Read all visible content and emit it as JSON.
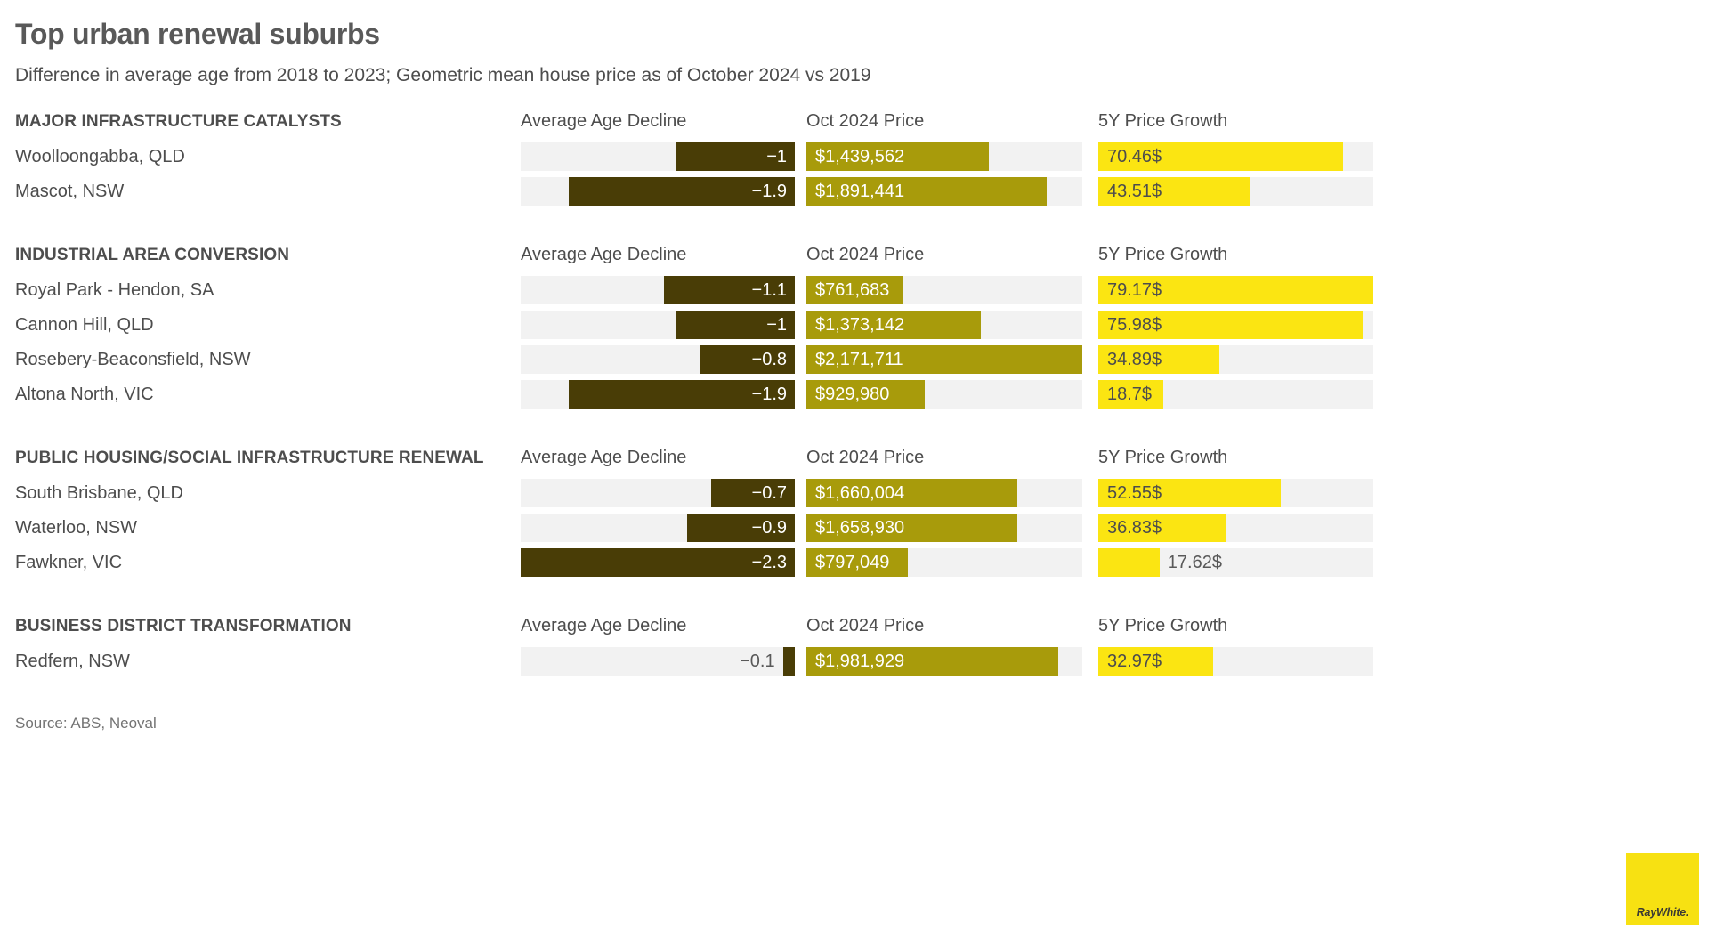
{
  "title": "Top urban renewal suburbs",
  "subtitle": "Difference in average age from 2018 to 2023; Geometric mean house price as of October 2024 vs 2019",
  "source_note": "Source: ABS, Neoval",
  "logo_text": "RayWhite.",
  "colors": {
    "age_bar": "#493d06",
    "price_bar": "#a89b0b",
    "growth_bar": "#fbe512",
    "track": "#f2f2f2",
    "logo_bg": "#f7e112"
  },
  "chart_data": {
    "type": "bar",
    "orientation": "horizontal",
    "title": "Top urban renewal suburbs",
    "subtitle": "Difference in average age from 2018 to 2023; Geometric mean house price as of October 2024 vs 2019",
    "legend_position": "none",
    "grid": false,
    "measures": [
      {
        "key": "age",
        "label": "Average Age Decline",
        "axis_min": 0,
        "axis_max": 2.3
      },
      {
        "key": "price",
        "label": "Oct 2024 Price",
        "axis_min": 0,
        "axis_max": 2171711
      },
      {
        "key": "growth",
        "label": "5Y Price Growth",
        "axis_min": 0,
        "axis_max": 79.17
      }
    ],
    "sections": [
      {
        "label": "MAJOR INFRASTRUCTURE CATALYSTS",
        "rows": [
          {
            "suburb": "Woolloongabba, QLD",
            "age": 1,
            "age_label": "−1",
            "price": 1439562,
            "price_label": "$1,439,562",
            "growth": 70.46,
            "growth_label": "70.46$"
          },
          {
            "suburb": "Mascot, NSW",
            "age": 1.9,
            "age_label": "−1.9",
            "price": 1891441,
            "price_label": "$1,891,441",
            "growth": 43.51,
            "growth_label": "43.51$"
          }
        ]
      },
      {
        "label": "INDUSTRIAL AREA CONVERSION",
        "rows": [
          {
            "suburb": "Royal Park - Hendon, SA",
            "age": 1.1,
            "age_label": "−1.1",
            "price": 761683,
            "price_label": "$761,683",
            "growth": 79.17,
            "growth_label": "79.17$"
          },
          {
            "suburb": "Cannon Hill, QLD",
            "age": 1,
            "age_label": "−1",
            "price": 1373142,
            "price_label": "$1,373,142",
            "growth": 75.98,
            "growth_label": "75.98$"
          },
          {
            "suburb": "Rosebery-Beaconsfield, NSW",
            "age": 0.8,
            "age_label": "−0.8",
            "price": 2171711,
            "price_label": "$2,171,711",
            "growth": 34.89,
            "growth_label": "34.89$"
          },
          {
            "suburb": "Altona North, VIC",
            "age": 1.9,
            "age_label": "−1.9",
            "price": 929980,
            "price_label": "$929,980",
            "growth": 18.7,
            "growth_label": "18.7$"
          }
        ]
      },
      {
        "label": "PUBLIC HOUSING/SOCIAL INFRASTRUCTURE RENEWAL",
        "rows": [
          {
            "suburb": "South Brisbane, QLD",
            "age": 0.7,
            "age_label": "−0.7",
            "price": 1660004,
            "price_label": "$1,660,004",
            "growth": 52.55,
            "growth_label": "52.55$"
          },
          {
            "suburb": "Waterloo, NSW",
            "age": 0.9,
            "age_label": "−0.9",
            "price": 1658930,
            "price_label": "$1,658,930",
            "growth": 36.83,
            "growth_label": "36.83$"
          },
          {
            "suburb": "Fawkner, VIC",
            "age": 2.3,
            "age_label": "−2.3",
            "price": 797049,
            "price_label": "$797,049",
            "growth": 17.62,
            "growth_label": "17.62$"
          }
        ]
      },
      {
        "label": "BUSINESS DISTRICT TRANSFORMATION",
        "rows": [
          {
            "suburb": "Redfern, NSW",
            "age": 0.1,
            "age_label": "−0.1",
            "price": 1981929,
            "price_label": "$1,981,929",
            "growth": 32.97,
            "growth_label": "32.97$"
          }
        ]
      }
    ]
  }
}
